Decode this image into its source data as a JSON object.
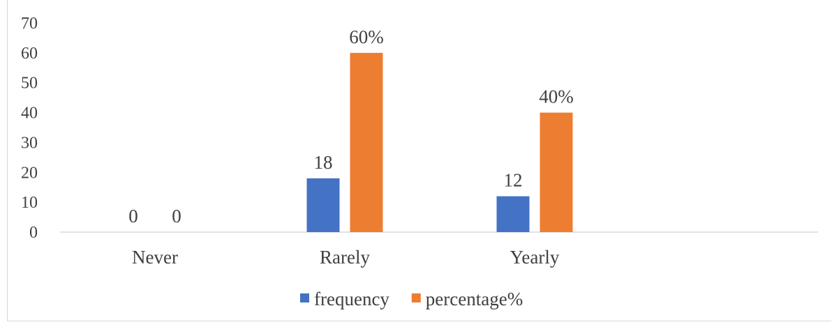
{
  "chart_data": {
    "type": "bar",
    "categories": [
      "Never",
      "Rarely",
      "Yearly"
    ],
    "series": [
      {
        "name": "frequency",
        "values": [
          0,
          18,
          12
        ],
        "labels": [
          "0",
          "18",
          "12"
        ],
        "color": "#4472c4"
      },
      {
        "name": "percentage%",
        "values": [
          0,
          60,
          40
        ],
        "labels": [
          "0",
          "60%",
          "40%"
        ],
        "color": "#ed7d31"
      }
    ],
    "ylim": [
      0,
      70
    ],
    "yticks": [
      0,
      10,
      20,
      30,
      40,
      50,
      60,
      70
    ],
    "grid": false,
    "legend": "bottom",
    "title": "",
    "xlabel": "",
    "ylabel": ""
  }
}
